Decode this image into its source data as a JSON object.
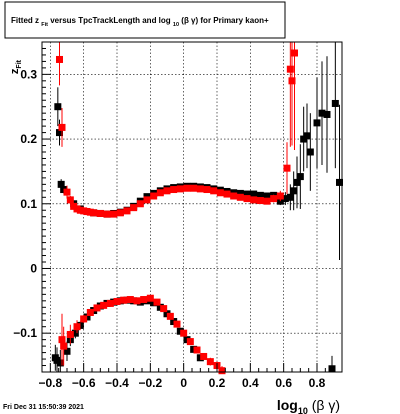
{
  "title_box": {
    "text_before": "Fitted  z",
    "subscript_1": "Fit",
    "text_middle": " versus TpcTrackLength and log",
    "subscript_2": "10",
    "text_after": " (β  γ) for Primary kaon+"
  },
  "footer": {
    "timestamp": "Fri Dec 31 15:50:39 2021"
  },
  "chart_data": {
    "type": "scatter",
    "title": "Fitted z_Fit versus TpcTrackLength and log10(β γ) for Primary kaon+",
    "xlabel": "log10 (β γ)",
    "ylabel": "zFit",
    "xlim": [
      -0.85,
      0.95
    ],
    "ylim": [
      -0.16,
      0.35
    ],
    "grid": true,
    "x_ticks": [
      -0.8,
      -0.6,
      -0.4,
      -0.2,
      0,
      0.2,
      0.4,
      0.6,
      0.8
    ],
    "x_tick_labels": [
      "−0.8",
      "−0.6",
      "−0.4",
      "−0.2",
      "0",
      "0.2",
      "0.4",
      "0.6",
      "0.8"
    ],
    "y_ticks": [
      -0.1,
      0,
      0.1,
      0.2,
      0.3
    ],
    "y_tick_labels": [
      "−0.1",
      "0",
      "0.1",
      "0.2",
      "0.3"
    ],
    "series": [
      {
        "color": "#000000",
        "marker": "square",
        "points": [
          {
            "x": -0.77,
            "y": -0.138,
            "e": 0.02
          },
          {
            "x": -0.76,
            "y": -0.142,
            "e": 0.02
          },
          {
            "x": -0.755,
            "y": 0.25,
            "e": 0.03
          },
          {
            "x": -0.745,
            "y": 0.21,
            "e": 0.02
          },
          {
            "x": -0.735,
            "y": 0.13,
            "e": 0.008
          },
          {
            "x": -0.72,
            "y": 0.122,
            "e": 0.006
          },
          {
            "x": -0.74,
            "y": -0.146,
            "e": 0.02
          },
          {
            "x": -0.7,
            "y": -0.128,
            "e": 0.015
          },
          {
            "x": -0.68,
            "y": -0.11,
            "e": 0.01
          },
          {
            "x": -0.65,
            "y": -0.1,
            "e": 0.008
          },
          {
            "x": -0.62,
            "y": -0.088,
            "e": 0.006
          },
          {
            "x": -0.58,
            "y": -0.075,
            "e": 0.005
          },
          {
            "x": -0.54,
            "y": -0.065,
            "e": 0.004
          },
          {
            "x": -0.5,
            "y": -0.058,
            "e": 0.004
          },
          {
            "x": -0.46,
            "y": -0.054,
            "e": 0.003
          },
          {
            "x": -0.42,
            "y": -0.052,
            "e": 0.003
          },
          {
            "x": -0.38,
            "y": -0.05,
            "e": 0.003
          },
          {
            "x": -0.34,
            "y": -0.049,
            "e": 0.003
          },
          {
            "x": -0.3,
            "y": -0.05,
            "e": 0.003
          },
          {
            "x": -0.26,
            "y": -0.052,
            "e": 0.003
          },
          {
            "x": -0.22,
            "y": -0.05,
            "e": 0.003
          },
          {
            "x": -0.18,
            "y": -0.053,
            "e": 0.003
          },
          {
            "x": -0.14,
            "y": -0.06,
            "e": 0.003
          },
          {
            "x": -0.1,
            "y": -0.07,
            "e": 0.003
          },
          {
            "x": -0.06,
            "y": -0.082,
            "e": 0.004
          },
          {
            "x": -0.02,
            "y": -0.097,
            "e": 0.004
          },
          {
            "x": 0.02,
            "y": -0.11,
            "e": 0.004
          },
          {
            "x": 0.06,
            "y": -0.125,
            "e": 0.005
          },
          {
            "x": 0.1,
            "y": -0.138,
            "e": 0.005
          },
          {
            "x": -0.66,
            "y": 0.1,
            "e": 0.004
          },
          {
            "x": -0.62,
            "y": 0.092,
            "e": 0.003
          },
          {
            "x": -0.58,
            "y": 0.088,
            "e": 0.003
          },
          {
            "x": -0.54,
            "y": 0.086,
            "e": 0.003
          },
          {
            "x": -0.5,
            "y": 0.085,
            "e": 0.003
          },
          {
            "x": -0.46,
            "y": 0.084,
            "e": 0.003
          },
          {
            "x": -0.42,
            "y": 0.085,
            "e": 0.003
          },
          {
            "x": -0.38,
            "y": 0.087,
            "e": 0.003
          },
          {
            "x": -0.34,
            "y": 0.09,
            "e": 0.003
          },
          {
            "x": -0.3,
            "y": 0.096,
            "e": 0.003
          },
          {
            "x": -0.26,
            "y": 0.104,
            "e": 0.003
          },
          {
            "x": -0.22,
            "y": 0.111,
            "e": 0.003
          },
          {
            "x": -0.18,
            "y": 0.116,
            "e": 0.003
          },
          {
            "x": -0.14,
            "y": 0.12,
            "e": 0.003
          },
          {
            "x": -0.1,
            "y": 0.123,
            "e": 0.003
          },
          {
            "x": -0.06,
            "y": 0.125,
            "e": 0.003
          },
          {
            "x": -0.02,
            "y": 0.126,
            "e": 0.003
          },
          {
            "x": 0.02,
            "y": 0.127,
            "e": 0.003
          },
          {
            "x": 0.06,
            "y": 0.127,
            "e": 0.003
          },
          {
            "x": 0.1,
            "y": 0.126,
            "e": 0.003
          },
          {
            "x": 0.14,
            "y": 0.125,
            "e": 0.003
          },
          {
            "x": 0.18,
            "y": 0.123,
            "e": 0.003
          },
          {
            "x": 0.22,
            "y": 0.121,
            "e": 0.003
          },
          {
            "x": 0.26,
            "y": 0.119,
            "e": 0.003
          },
          {
            "x": 0.3,
            "y": 0.117,
            "e": 0.003
          },
          {
            "x": 0.34,
            "y": 0.116,
            "e": 0.003
          },
          {
            "x": 0.38,
            "y": 0.115,
            "e": 0.003
          },
          {
            "x": 0.42,
            "y": 0.115,
            "e": 0.003
          },
          {
            "x": 0.46,
            "y": 0.113,
            "e": 0.003
          },
          {
            "x": 0.5,
            "y": 0.112,
            "e": 0.004
          },
          {
            "x": 0.54,
            "y": 0.113,
            "e": 0.004
          },
          {
            "x": 0.58,
            "y": 0.104,
            "e": 0.006
          },
          {
            "x": 0.61,
            "y": 0.108,
            "e": 0.01
          },
          {
            "x": 0.64,
            "y": 0.11,
            "e": 0.02
          },
          {
            "x": 0.66,
            "y": 0.12,
            "e": 0.03
          },
          {
            "x": 0.68,
            "y": 0.133,
            "e": 0.04
          },
          {
            "x": 0.7,
            "y": 0.142,
            "e": 0.05
          },
          {
            "x": 0.72,
            "y": 0.2,
            "e": 0.05
          },
          {
            "x": 0.74,
            "y": 0.205,
            "e": 0.05
          },
          {
            "x": 0.76,
            "y": 0.18,
            "e": 0.06
          },
          {
            "x": 0.8,
            "y": 0.225,
            "e": 0.07
          },
          {
            "x": 0.83,
            "y": 0.24,
            "e": 0.08
          },
          {
            "x": 0.86,
            "y": 0.238,
            "e": 0.09
          },
          {
            "x": 0.89,
            "y": -0.155,
            "e": 0.02
          },
          {
            "x": 0.91,
            "y": 0.255,
            "e": 0.1
          },
          {
            "x": 0.935,
            "y": 0.133,
            "e": 0.12
          }
        ]
      },
      {
        "color": "#ff0000",
        "marker": "square",
        "points": [
          {
            "x": -0.745,
            "y": 0.323,
            "e": 0.04
          },
          {
            "x": -0.73,
            "y": 0.218,
            "e": 0.03
          },
          {
            "x": -0.73,
            "y": -0.11,
            "e": 0.04
          },
          {
            "x": -0.7,
            "y": 0.118,
            "e": 0.01
          },
          {
            "x": -0.68,
            "y": 0.106,
            "e": 0.006
          },
          {
            "x": -0.66,
            "y": 0.096,
            "e": 0.005
          },
          {
            "x": -0.64,
            "y": 0.092,
            "e": 0.004
          },
          {
            "x": -0.62,
            "y": 0.09,
            "e": 0.004
          },
          {
            "x": -0.6,
            "y": 0.089,
            "e": 0.003
          },
          {
            "x": -0.58,
            "y": 0.088,
            "e": 0.003
          },
          {
            "x": -0.56,
            "y": 0.087,
            "e": 0.003
          },
          {
            "x": -0.54,
            "y": 0.086,
            "e": 0.003
          },
          {
            "x": -0.5,
            "y": 0.085,
            "e": 0.003
          },
          {
            "x": -0.46,
            "y": 0.084,
            "e": 0.003
          },
          {
            "x": -0.42,
            "y": 0.084,
            "e": 0.003
          },
          {
            "x": -0.38,
            "y": 0.086,
            "e": 0.003
          },
          {
            "x": -0.34,
            "y": 0.089,
            "e": 0.003
          },
          {
            "x": -0.3,
            "y": 0.094,
            "e": 0.003
          },
          {
            "x": -0.26,
            "y": 0.1,
            "e": 0.003
          },
          {
            "x": -0.22,
            "y": 0.106,
            "e": 0.003
          },
          {
            "x": -0.18,
            "y": 0.112,
            "e": 0.003
          },
          {
            "x": -0.14,
            "y": 0.117,
            "e": 0.003
          },
          {
            "x": -0.1,
            "y": 0.12,
            "e": 0.003
          },
          {
            "x": -0.06,
            "y": 0.122,
            "e": 0.003
          },
          {
            "x": -0.02,
            "y": 0.123,
            "e": 0.003
          },
          {
            "x": 0.02,
            "y": 0.124,
            "e": 0.003
          },
          {
            "x": 0.06,
            "y": 0.124,
            "e": 0.003
          },
          {
            "x": 0.1,
            "y": 0.123,
            "e": 0.003
          },
          {
            "x": 0.14,
            "y": 0.122,
            "e": 0.003
          },
          {
            "x": 0.18,
            "y": 0.12,
            "e": 0.003
          },
          {
            "x": 0.22,
            "y": 0.117,
            "e": 0.003
          },
          {
            "x": 0.26,
            "y": 0.115,
            "e": 0.003
          },
          {
            "x": 0.3,
            "y": 0.112,
            "e": 0.003
          },
          {
            "x": 0.34,
            "y": 0.11,
            "e": 0.003
          },
          {
            "x": 0.38,
            "y": 0.108,
            "e": 0.003
          },
          {
            "x": 0.42,
            "y": 0.106,
            "e": 0.003
          },
          {
            "x": 0.46,
            "y": 0.105,
            "e": 0.003
          },
          {
            "x": 0.5,
            "y": 0.104,
            "e": 0.004
          },
          {
            "x": 0.54,
            "y": 0.108,
            "e": 0.006
          },
          {
            "x": 0.58,
            "y": 0.112,
            "e": 0.008
          },
          {
            "x": 0.62,
            "y": 0.155,
            "e": 0.04
          },
          {
            "x": 0.64,
            "y": 0.308,
            "e": 0.12
          },
          {
            "x": 0.65,
            "y": 0.29,
            "e": 0.1
          },
          {
            "x": 0.665,
            "y": 0.333,
            "e": 0.15
          },
          {
            "x": -0.72,
            "y": -0.12,
            "e": 0.03
          },
          {
            "x": -0.68,
            "y": -0.102,
            "e": 0.015
          },
          {
            "x": -0.64,
            "y": -0.09,
            "e": 0.01
          },
          {
            "x": -0.6,
            "y": -0.078,
            "e": 0.006
          },
          {
            "x": -0.56,
            "y": -0.068,
            "e": 0.005
          },
          {
            "x": -0.52,
            "y": -0.061,
            "e": 0.004
          },
          {
            "x": -0.48,
            "y": -0.057,
            "e": 0.004
          },
          {
            "x": -0.44,
            "y": -0.054,
            "e": 0.003
          },
          {
            "x": -0.4,
            "y": -0.051,
            "e": 0.003
          },
          {
            "x": -0.36,
            "y": -0.049,
            "e": 0.003
          },
          {
            "x": -0.32,
            "y": -0.048,
            "e": 0.003
          },
          {
            "x": -0.28,
            "y": -0.05,
            "e": 0.003
          },
          {
            "x": -0.24,
            "y": -0.048,
            "e": 0.003
          },
          {
            "x": -0.2,
            "y": -0.046,
            "e": 0.003
          },
          {
            "x": -0.16,
            "y": -0.052,
            "e": 0.003
          },
          {
            "x": -0.12,
            "y": -0.062,
            "e": 0.003
          },
          {
            "x": -0.08,
            "y": -0.074,
            "e": 0.003
          },
          {
            "x": -0.04,
            "y": -0.086,
            "e": 0.004
          },
          {
            "x": 0.0,
            "y": -0.1,
            "e": 0.004
          },
          {
            "x": 0.04,
            "y": -0.113,
            "e": 0.004
          },
          {
            "x": 0.08,
            "y": -0.126,
            "e": 0.005
          },
          {
            "x": 0.12,
            "y": -0.136,
            "e": 0.005
          },
          {
            "x": 0.16,
            "y": -0.144,
            "e": 0.006
          },
          {
            "x": 0.2,
            "y": -0.15,
            "e": 0.006
          },
          {
            "x": 0.23,
            "y": -0.158,
            "e": 0.007
          }
        ]
      }
    ]
  }
}
